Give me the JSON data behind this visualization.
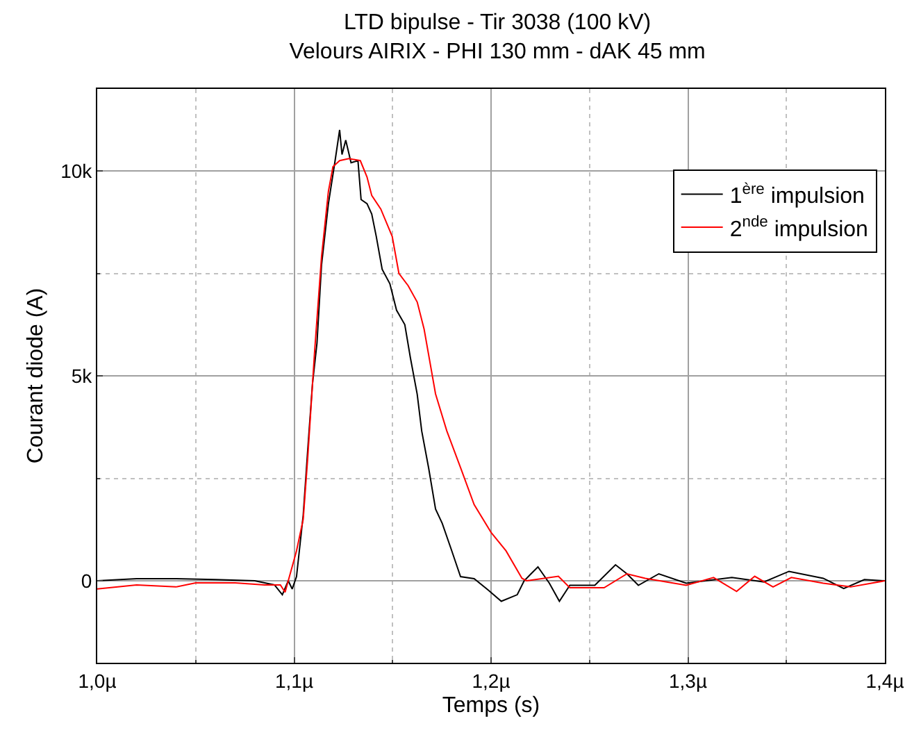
{
  "chart_data": {
    "type": "line",
    "title": "LTD bipulse - Tir 3038 (100 kV)",
    "subtitle": "Velours AIRIX - PHI 130 mm - dAK 45 mm",
    "xlabel": "Temps (s)",
    "ylabel": "Courant diode (A)",
    "xlim": [
      1.0,
      1.4
    ],
    "xticks": [
      {
        "value": 1.0,
        "label": "1,0µ"
      },
      {
        "value": 1.1,
        "label": "1,1µ"
      },
      {
        "value": 1.2,
        "label": "1,2µ"
      },
      {
        "value": 1.3,
        "label": "1,3µ"
      },
      {
        "value": 1.4,
        "label": "1,4µ"
      }
    ],
    "ylim": [
      -2000,
      12000
    ],
    "yticks": [
      0,
      {
        "value": 5000,
        "label": "5k"
      },
      {
        "value": 10000,
        "label": "10k"
      }
    ],
    "grid": true,
    "legend": "top right",
    "marker": "none",
    "line_style": "solid",
    "series": [
      {
        "name": "1$^{ère}$ impulsion",
        "color": "#000000",
        "x": [
          1.0,
          1.02,
          1.04,
          1.06,
          1.08,
          1.09,
          1.094,
          1.097,
          1.099,
          1.1012,
          1.1046,
          1.1069,
          1.1093,
          1.1116,
          1.1139,
          1.1174,
          1.1208,
          1.1231,
          1.1243,
          1.1262,
          1.1289,
          1.1324,
          1.134,
          1.137,
          1.1394,
          1.1417,
          1.1447,
          1.1486,
          1.152,
          1.1562,
          1.159,
          1.1625,
          1.1648,
          1.1683,
          1.1718,
          1.1752,
          1.1799,
          1.1845,
          1.1914,
          1.1984,
          1.2052,
          1.2133,
          1.2168,
          1.2238,
          1.2296,
          1.2347,
          1.24,
          1.2527,
          1.2632,
          1.269,
          1.2748,
          1.2852,
          1.2991,
          1.3223,
          1.3386,
          1.3513,
          1.3687,
          1.3791,
          1.3896,
          1.4
        ],
        "values": [
          0,
          50,
          50,
          30,
          0,
          -100,
          -340,
          0,
          -200,
          100,
          1600,
          3200,
          4800,
          5800,
          7700,
          9200,
          10250,
          11000,
          10400,
          10750,
          10200,
          10250,
          9300,
          9200,
          8950,
          8400,
          7600,
          7250,
          6600,
          6250,
          5450,
          4550,
          3650,
          2750,
          1750,
          1400,
          750,
          100,
          50,
          -220,
          -500,
          -340,
          0,
          340,
          -60,
          -500,
          -110,
          -110,
          390,
          170,
          -110,
          170,
          -60,
          80,
          -30,
          230,
          60,
          -190,
          30,
          0
        ]
      },
      {
        "name": "2$^{nde}$ impulsion",
        "color": "#ff0000",
        "x": [
          1.0,
          1.02,
          1.04,
          1.05,
          1.07,
          1.085,
          1.093,
          1.0954,
          1.1012,
          1.1046,
          1.1069,
          1.1104,
          1.1139,
          1.1174,
          1.1197,
          1.1231,
          1.1278,
          1.1336,
          1.137,
          1.1394,
          1.144,
          1.1498,
          1.1532,
          1.1579,
          1.1625,
          1.166,
          1.1718,
          1.1775,
          1.1845,
          1.1914,
          1.2,
          1.2076,
          1.2157,
          1.218,
          1.2342,
          1.24,
          1.2574,
          1.269,
          1.2783,
          1.2991,
          1.313,
          1.3247,
          1.3339,
          1.3432,
          1.3525,
          1.3687,
          1.3826,
          1.4
        ],
        "values": [
          -200,
          -100,
          -150,
          -50,
          -50,
          -100,
          -100,
          -280,
          730,
          1500,
          3000,
          5600,
          7900,
          9500,
          10100,
          10250,
          10300,
          10250,
          9850,
          9400,
          9070,
          8400,
          7500,
          7200,
          6800,
          6140,
          4560,
          3660,
          2760,
          1860,
          1180,
          730,
          60,
          0,
          110,
          -170,
          -170,
          170,
          60,
          -110,
          80,
          -260,
          110,
          -150,
          80,
          -60,
          -150,
          0
        ]
      }
    ]
  }
}
